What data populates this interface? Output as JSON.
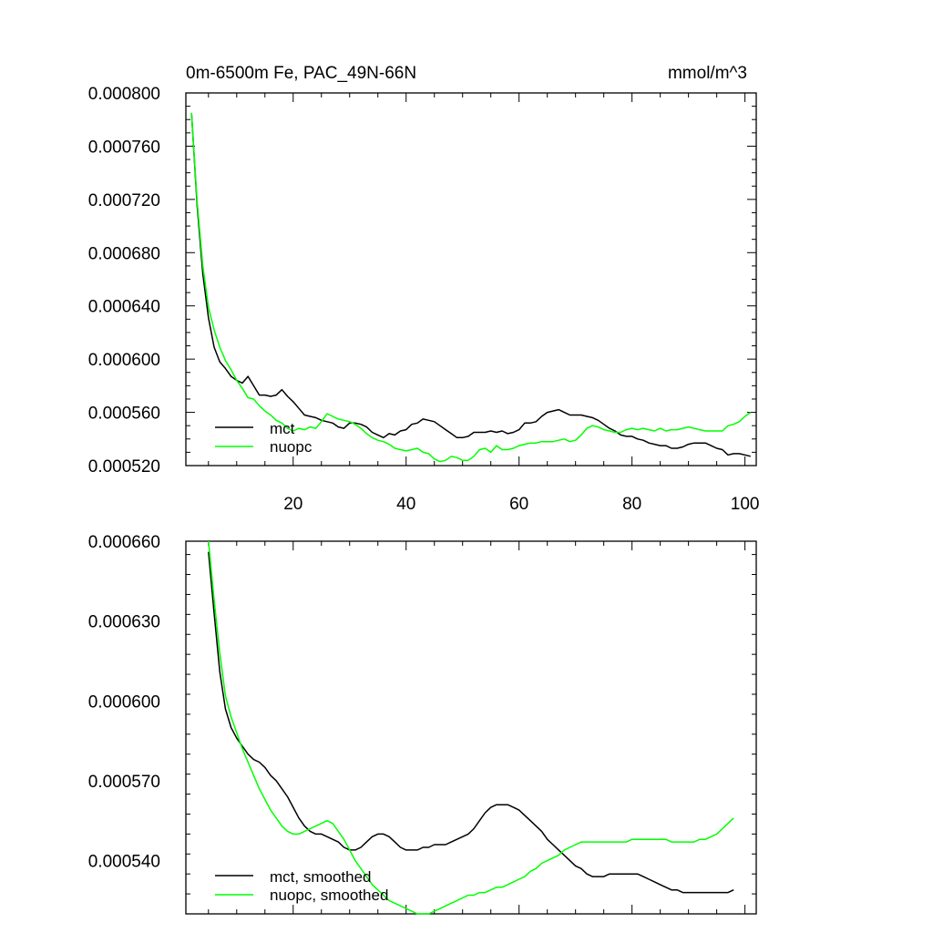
{
  "chart_data": [
    {
      "type": "line",
      "title": "0m-6500m Fe, PAC_49N-66N",
      "units": "mmol/m^3",
      "xlim": [
        1,
        102
      ],
      "ylim": [
        0.00052,
        0.0008
      ],
      "x_ticks": [
        20,
        40,
        60,
        80,
        100
      ],
      "x_tick_labels": [
        "20",
        "40",
        "60",
        "80",
        "100"
      ],
      "y_ticks": [
        0.00052,
        0.00056,
        0.0006,
        0.00064,
        0.00068,
        0.00072,
        0.00076,
        0.0008
      ],
      "y_tick_labels": [
        "0.000520",
        "0.000560",
        "0.000600",
        "0.000640",
        "0.000680",
        "0.000720",
        "0.000760",
        "0.000800"
      ],
      "legend": "bottom-left",
      "series": [
        {
          "name": "mct",
          "color": "#000000",
          "x": [
            2,
            3,
            4,
            5,
            6,
            7,
            8,
            9,
            10,
            11,
            12,
            13,
            14,
            15,
            16,
            17,
            18,
            19,
            20,
            21,
            22,
            23,
            24,
            25,
            26,
            27,
            28,
            29,
            30,
            31,
            32,
            33,
            34,
            35,
            36,
            37,
            38,
            39,
            40,
            41,
            42,
            43,
            44,
            45,
            46,
            47,
            48,
            49,
            50,
            51,
            52,
            53,
            54,
            55,
            56,
            57,
            58,
            59,
            60,
            61,
            62,
            63,
            64,
            65,
            66,
            67,
            68,
            69,
            70,
            71,
            72,
            73,
            74,
            75,
            76,
            77,
            78,
            79,
            80,
            81,
            82,
            83,
            84,
            85,
            86,
            87,
            88,
            89,
            90,
            91,
            92,
            93,
            94,
            95,
            96,
            97,
            98,
            99,
            100,
            101
          ],
          "values": [
            0.000785,
            0.000715,
            0.000664,
            0.000631,
            0.000609,
            0.000598,
            0.000593,
            0.000587,
            0.000584,
            0.000582,
            0.000587,
            0.00058,
            0.000573,
            0.000573,
            0.000572,
            0.000573,
            0.000577,
            0.000572,
            0.000568,
            0.000563,
            0.000558,
            0.000557,
            0.000556,
            0.000554,
            0.000553,
            0.000552,
            0.000549,
            0.000548,
            0.000552,
            0.000552,
            0.000551,
            0.000549,
            0.000545,
            0.000543,
            0.000541,
            0.000544,
            0.000543,
            0.000546,
            0.000547,
            0.000551,
            0.000552,
            0.000555,
            0.000554,
            0.000553,
            0.00055,
            0.000547,
            0.000544,
            0.000541,
            0.000541,
            0.000542,
            0.000545,
            0.000545,
            0.000545,
            0.000546,
            0.000545,
            0.000546,
            0.000544,
            0.000545,
            0.000547,
            0.000552,
            0.000552,
            0.000553,
            0.000557,
            0.00056,
            0.000561,
            0.000562,
            0.00056,
            0.000558,
            0.000558,
            0.000558,
            0.000557,
            0.000556,
            0.000554,
            0.000551,
            0.000548,
            0.000546,
            0.000543,
            0.000542,
            0.000542,
            0.00054,
            0.000539,
            0.000537,
            0.000536,
            0.000535,
            0.000535,
            0.000533,
            0.000533,
            0.000534,
            0.000536,
            0.000537,
            0.000537,
            0.000537,
            0.000535,
            0.000533,
            0.000532,
            0.000528,
            0.000529,
            0.000529,
            0.000528,
            0.000527
          ]
        },
        {
          "name": "nuopc",
          "color": "#00ff00",
          "x": [
            2,
            3,
            4,
            5,
            6,
            7,
            8,
            9,
            10,
            11,
            12,
            13,
            14,
            15,
            16,
            17,
            18,
            19,
            20,
            21,
            22,
            23,
            24,
            25,
            26,
            27,
            28,
            29,
            30,
            31,
            32,
            33,
            34,
            35,
            36,
            37,
            38,
            39,
            40,
            41,
            42,
            43,
            44,
            45,
            46,
            47,
            48,
            49,
            50,
            51,
            52,
            53,
            54,
            55,
            56,
            57,
            58,
            59,
            60,
            61,
            62,
            63,
            64,
            65,
            66,
            67,
            68,
            69,
            70,
            71,
            72,
            73,
            74,
            75,
            76,
            77,
            78,
            79,
            80,
            81,
            82,
            83,
            84,
            85,
            86,
            87,
            88,
            89,
            90,
            91,
            92,
            93,
            94,
            95,
            96,
            97,
            98,
            99,
            100,
            101
          ],
          "values": [
            0.000785,
            0.000718,
            0.00067,
            0.000639,
            0.000622,
            0.000609,
            0.000599,
            0.000592,
            0.000584,
            0.000578,
            0.000571,
            0.00057,
            0.000565,
            0.000561,
            0.000558,
            0.000554,
            0.000552,
            0.000548,
            0.000546,
            0.000548,
            0.000547,
            0.000549,
            0.000548,
            0.000553,
            0.000559,
            0.000557,
            0.000555,
            0.000554,
            0.000553,
            0.000551,
            0.000548,
            0.000544,
            0.000541,
            0.000539,
            0.000538,
            0.000536,
            0.000533,
            0.000532,
            0.000531,
            0.000532,
            0.000533,
            0.00053,
            0.000529,
            0.000525,
            0.000523,
            0.000524,
            0.000527,
            0.000526,
            0.000524,
            0.000524,
            0.000527,
            0.000532,
            0.000533,
            0.00053,
            0.000535,
            0.000532,
            0.000532,
            0.000533,
            0.000535,
            0.000536,
            0.000537,
            0.000537,
            0.000538,
            0.000538,
            0.000538,
            0.000539,
            0.00054,
            0.000538,
            0.000539,
            0.000543,
            0.000548,
            0.00055,
            0.000549,
            0.000547,
            0.000546,
            0.000545,
            0.000545,
            0.000547,
            0.000548,
            0.000547,
            0.000548,
            0.000547,
            0.000546,
            0.000548,
            0.000546,
            0.000547,
            0.000547,
            0.000548,
            0.000549,
            0.000548,
            0.000547,
            0.000546,
            0.000546,
            0.000546,
            0.000546,
            0.00055,
            0.000551,
            0.000553,
            0.000557,
            0.00056
          ]
        }
      ]
    },
    {
      "type": "line",
      "xlim": [
        1,
        102
      ],
      "ylim": [
        0.00052,
        0.00066
      ],
      "x_ticks": [
        20,
        40,
        60,
        80,
        100
      ],
      "y_ticks": [
        0.00054,
        0.00057,
        0.0006,
        0.00063,
        0.00066
      ],
      "y_tick_labels": [
        "0.000540",
        "0.000570",
        "0.000600",
        "0.000630",
        "0.000660"
      ],
      "legend": "bottom-left",
      "series": [
        {
          "name": "mct, smoothed",
          "color": "#000000",
          "x": [
            5,
            6,
            7,
            8,
            9,
            10,
            11,
            12,
            13,
            14,
            15,
            16,
            17,
            18,
            19,
            20,
            21,
            22,
            23,
            24,
            25,
            26,
            27,
            28,
            29,
            30,
            31,
            32,
            33,
            34,
            35,
            36,
            37,
            38,
            39,
            40,
            41,
            42,
            43,
            44,
            45,
            46,
            47,
            48,
            49,
            50,
            51,
            52,
            53,
            54,
            55,
            56,
            57,
            58,
            59,
            60,
            61,
            62,
            63,
            64,
            65,
            66,
            67,
            68,
            69,
            70,
            71,
            72,
            73,
            74,
            75,
            76,
            77,
            78,
            79,
            80,
            81,
            82,
            83,
            84,
            85,
            86,
            87,
            88,
            89,
            90,
            91,
            92,
            93,
            94,
            95,
            96,
            97,
            98
          ],
          "values": [
            0.000656,
            0.000633,
            0.000611,
            0.000597,
            0.00059,
            0.000586,
            0.000583,
            0.00058,
            0.000578,
            0.000577,
            0.000575,
            0.000572,
            0.00057,
            0.000567,
            0.000564,
            0.00056,
            0.000556,
            0.000553,
            0.000551,
            0.00055,
            0.00055,
            0.000549,
            0.000548,
            0.000547,
            0.000545,
            0.000544,
            0.000544,
            0.000545,
            0.000547,
            0.000549,
            0.00055,
            0.00055,
            0.000549,
            0.000547,
            0.000545,
            0.000544,
            0.000544,
            0.000544,
            0.000545,
            0.000545,
            0.000546,
            0.000546,
            0.000546,
            0.000547,
            0.000548,
            0.000549,
            0.00055,
            0.000552,
            0.000555,
            0.000558,
            0.00056,
            0.000561,
            0.000561,
            0.000561,
            0.00056,
            0.000559,
            0.000557,
            0.000555,
            0.000553,
            0.000551,
            0.000548,
            0.000546,
            0.000544,
            0.000542,
            0.00054,
            0.000538,
            0.000537,
            0.000535,
            0.000534,
            0.000534,
            0.000534,
            0.000535,
            0.000535,
            0.000535,
            0.000535,
            0.000535,
            0.000535,
            0.000534,
            0.000533,
            0.000532,
            0.000531,
            0.00053,
            0.000529,
            0.000529,
            0.000528,
            0.000528,
            0.000528,
            0.000528,
            0.000528,
            0.000528,
            0.000528,
            0.000528,
            0.000528,
            0.000529
          ]
        },
        {
          "name": "nuopc, smoothed",
          "color": "#00ff00",
          "x": [
            5,
            6,
            7,
            8,
            9,
            10,
            11,
            12,
            13,
            14,
            15,
            16,
            17,
            18,
            19,
            20,
            21,
            22,
            23,
            24,
            25,
            26,
            27,
            28,
            29,
            30,
            31,
            32,
            33,
            34,
            35,
            36,
            37,
            38,
            39,
            40,
            41,
            42,
            43,
            44,
            45,
            46,
            47,
            48,
            49,
            50,
            51,
            52,
            53,
            54,
            55,
            56,
            57,
            58,
            59,
            60,
            61,
            62,
            63,
            64,
            65,
            66,
            67,
            68,
            69,
            70,
            71,
            72,
            73,
            74,
            75,
            76,
            77,
            78,
            79,
            80,
            81,
            82,
            83,
            84,
            85,
            86,
            87,
            88,
            89,
            90,
            91,
            92,
            93,
            94,
            95,
            96,
            97,
            98
          ],
          "values": [
            0.00066,
            0.000638,
            0.000618,
            0.000602,
            0.000594,
            0.000588,
            0.000582,
            0.000577,
            0.000572,
            0.000567,
            0.000563,
            0.000559,
            0.000556,
            0.000553,
            0.000551,
            0.00055,
            0.00055,
            0.000551,
            0.000552,
            0.000553,
            0.000554,
            0.000555,
            0.000554,
            0.000551,
            0.000548,
            0.000544,
            0.00054,
            0.000537,
            0.000534,
            0.000531,
            0.000529,
            0.000527,
            0.000525,
            0.000524,
            0.000523,
            0.000522,
            0.000521,
            0.00052,
            0.00052,
            0.00052,
            0.000521,
            0.000522,
            0.000523,
            0.000524,
            0.000525,
            0.000526,
            0.000527,
            0.000527,
            0.000528,
            0.000528,
            0.000529,
            0.00053,
            0.00053,
            0.000531,
            0.000532,
            0.000533,
            0.000534,
            0.000536,
            0.000537,
            0.000539,
            0.00054,
            0.000541,
            0.000542,
            0.000544,
            0.000545,
            0.000546,
            0.000547,
            0.000547,
            0.000547,
            0.000547,
            0.000547,
            0.000547,
            0.000547,
            0.000547,
            0.000547,
            0.000548,
            0.000548,
            0.000548,
            0.000548,
            0.000548,
            0.000548,
            0.000548,
            0.000547,
            0.000547,
            0.000547,
            0.000547,
            0.000547,
            0.000548,
            0.000548,
            0.000549,
            0.00055,
            0.000552,
            0.000554,
            0.000556
          ]
        }
      ]
    }
  ]
}
